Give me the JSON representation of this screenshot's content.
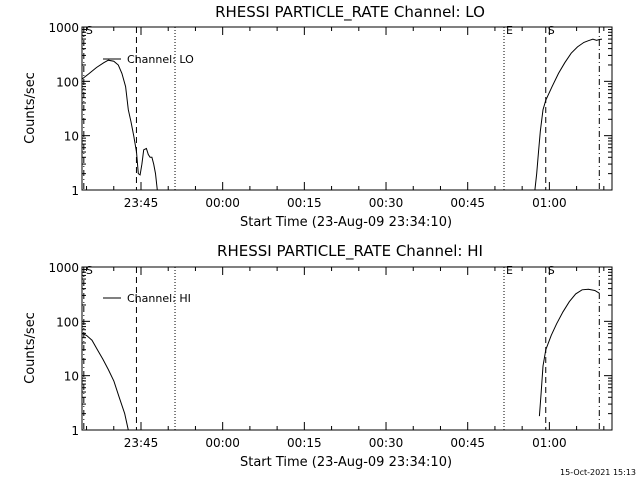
{
  "footer": {
    "timestamp": "15-Oct-2021 15:13"
  },
  "chart_data": [
    {
      "type": "line",
      "title": "RHESSI PARTICLE_RATE Channel: LO",
      "xlabel": "Start Time (23-Aug-09 23:34:10)",
      "ylabel": "Counts/sec",
      "yscale": "log",
      "ylim": [
        1,
        1000
      ],
      "xlim": [
        "23:34:10",
        "01:11:30"
      ],
      "ytick_labels": [
        "1",
        "10",
        "100",
        "1000"
      ],
      "xtick_labels": [
        "23:45",
        "00:00",
        "00:15",
        "00:30",
        "00:45",
        "01:00"
      ],
      "legend_position": "upper-left",
      "markers": [
        {
          "time": "23:34:30",
          "style": "dashdot",
          "label": "S"
        },
        {
          "time": "23:44:10",
          "style": "dashed",
          "label": ""
        },
        {
          "time": "23:51:15",
          "style": "dotted",
          "label": ""
        },
        {
          "time": "00:51:40",
          "style": "dotted",
          "label": "E"
        },
        {
          "time": "00:59:20",
          "style": "dashed",
          "label": "S"
        },
        {
          "time": "01:09:10",
          "style": "dashdot",
          "label": ""
        }
      ],
      "series": [
        {
          "name": "Channel: LO",
          "segments": [
            [
              [
                "23:34:10",
                110
              ],
              [
                "23:35:30",
                140
              ],
              [
                "23:36:50",
                180
              ],
              [
                "23:38:10",
                220
              ],
              [
                "23:39:00",
                245
              ],
              [
                "23:40:00",
                235
              ],
              [
                "23:40:50",
                200
              ],
              [
                "23:41:30",
                140
              ],
              [
                "23:42:10",
                80
              ],
              [
                "23:42:40",
                30
              ],
              [
                "23:43:10",
                18
              ],
              [
                "23:43:40",
                10
              ],
              [
                "23:44:10",
                5
              ],
              [
                "23:44:30",
                2
              ],
              [
                "23:44:50",
                1.9
              ],
              [
                "23:45:10",
                3
              ],
              [
                "23:45:30",
                5.5
              ],
              [
                "23:46:00",
                5.8
              ],
              [
                "23:46:20",
                4.5
              ],
              [
                "23:46:40",
                4
              ],
              [
                "23:47:00",
                4
              ],
              [
                "23:47:20",
                3
              ],
              [
                "23:47:40",
                2
              ],
              [
                "23:48:00",
                1
              ]
            ],
            [
              [
                "00:57:20",
                1
              ],
              [
                "00:57:40",
                2
              ],
              [
                "00:58:00",
                5
              ],
              [
                "00:58:20",
                12
              ],
              [
                "00:58:50",
                30
              ],
              [
                "00:59:20",
                45
              ],
              [
                "01:00:30",
                80
              ],
              [
                "01:01:40",
                140
              ],
              [
                "01:02:50",
                220
              ],
              [
                "01:04:00",
                330
              ],
              [
                "01:05:10",
                430
              ],
              [
                "01:06:20",
                520
              ],
              [
                "01:07:10",
                560
              ],
              [
                "01:08:00",
                600
              ],
              [
                "01:08:40",
                570
              ],
              [
                "01:09:10",
                590
              ],
              [
                "01:09:40",
                600
              ]
            ]
          ]
        }
      ]
    },
    {
      "type": "line",
      "title": "RHESSI PARTICLE_RATE Channel: HI",
      "xlabel": "Start Time (23-Aug-09 23:34:10)",
      "ylabel": "Counts/sec",
      "yscale": "log",
      "ylim": [
        1,
        1000
      ],
      "xlim": [
        "23:34:10",
        "01:11:30"
      ],
      "ytick_labels": [
        "1",
        "10",
        "100",
        "1000"
      ],
      "xtick_labels": [
        "23:45",
        "00:00",
        "00:15",
        "00:30",
        "00:45",
        "01:00"
      ],
      "legend_position": "upper-left",
      "markers": [
        {
          "time": "23:34:30",
          "style": "dashdot",
          "label": "S"
        },
        {
          "time": "23:44:10",
          "style": "dashed",
          "label": ""
        },
        {
          "time": "23:51:15",
          "style": "dotted",
          "label": ""
        },
        {
          "time": "00:51:40",
          "style": "dotted",
          "label": "E"
        },
        {
          "time": "00:59:20",
          "style": "dashed",
          "label": "S"
        },
        {
          "time": "01:09:10",
          "style": "dashdot",
          "label": ""
        }
      ],
      "series": [
        {
          "name": "Channel: HI",
          "segments": [
            [
              [
                "23:34:10",
                60
              ],
              [
                "23:35:00",
                55
              ],
              [
                "23:36:00",
                45
              ],
              [
                "23:37:00",
                30
              ],
              [
                "23:38:00",
                20
              ],
              [
                "23:39:00",
                13
              ],
              [
                "23:40:00",
                8
              ],
              [
                "23:41:00",
                4
              ],
              [
                "23:42:00",
                2
              ],
              [
                "23:42:40",
                1
              ]
            ],
            [
              [
                "00:58:10",
                1.8
              ],
              [
                "00:58:30",
                5
              ],
              [
                "00:58:50",
                15
              ],
              [
                "00:59:20",
                30
              ],
              [
                "01:00:20",
                55
              ],
              [
                "01:01:20",
                90
              ],
              [
                "01:02:30",
                150
              ],
              [
                "01:03:40",
                230
              ],
              [
                "01:04:50",
                320
              ],
              [
                "01:06:00",
                380
              ],
              [
                "01:07:10",
                390
              ],
              [
                "01:08:20",
                370
              ],
              [
                "01:09:10",
                330
              ]
            ]
          ]
        }
      ]
    }
  ]
}
